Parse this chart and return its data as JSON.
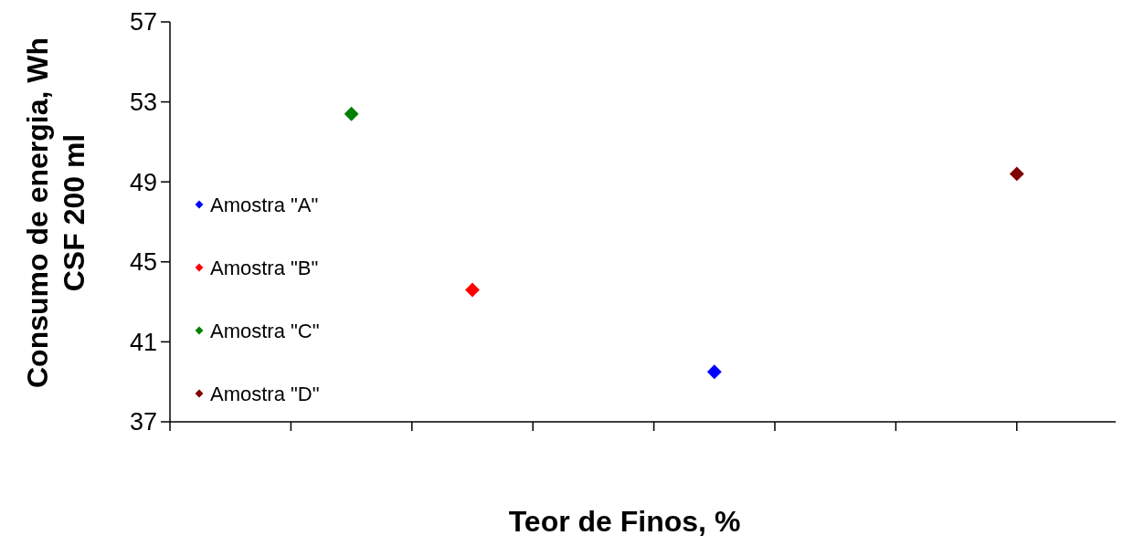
{
  "chart_data": {
    "type": "scatter",
    "xlabel": "Teor de Finos, %",
    "ylabel": "Consumo de energia, Wh\nCSF 200 ml",
    "categories": [
      null,
      null,
      null,
      null,
      null,
      null,
      null,
      null,
      null,
      null,
      null,
      null,
      null,
      null,
      null,
      null
    ],
    "ylim": [
      37,
      57
    ],
    "yticks": [
      37,
      41,
      45,
      49,
      53,
      57
    ],
    "grid": false,
    "legend": "left",
    "marker": "diamond",
    "series": [
      {
        "name": "Amostra \"A\"",
        "color": "#0000ff",
        "values": [
          null,
          null,
          null,
          null,
          null,
          null,
          null,
          null,
          null,
          39.5,
          null,
          null,
          null,
          null,
          null,
          null
        ]
      },
      {
        "name": "Amostra \"B\"",
        "color": "#ff0000",
        "values": [
          null,
          null,
          null,
          null,
          null,
          43.6,
          null,
          null,
          null,
          null,
          null,
          null,
          null,
          null,
          null,
          null
        ]
      },
      {
        "name": "Amostra \"C\"",
        "color": "#008000",
        "values": [
          null,
          null,
          null,
          52.4,
          null,
          null,
          null,
          null,
          null,
          null,
          null,
          null,
          null,
          null,
          null,
          null
        ]
      },
      {
        "name": "Amostra \"D\"",
        "color": "#800000",
        "values": [
          null,
          null,
          null,
          null,
          null,
          null,
          null,
          null,
          null,
          null,
          null,
          null,
          null,
          null,
          49.4,
          null
        ]
      }
    ]
  }
}
